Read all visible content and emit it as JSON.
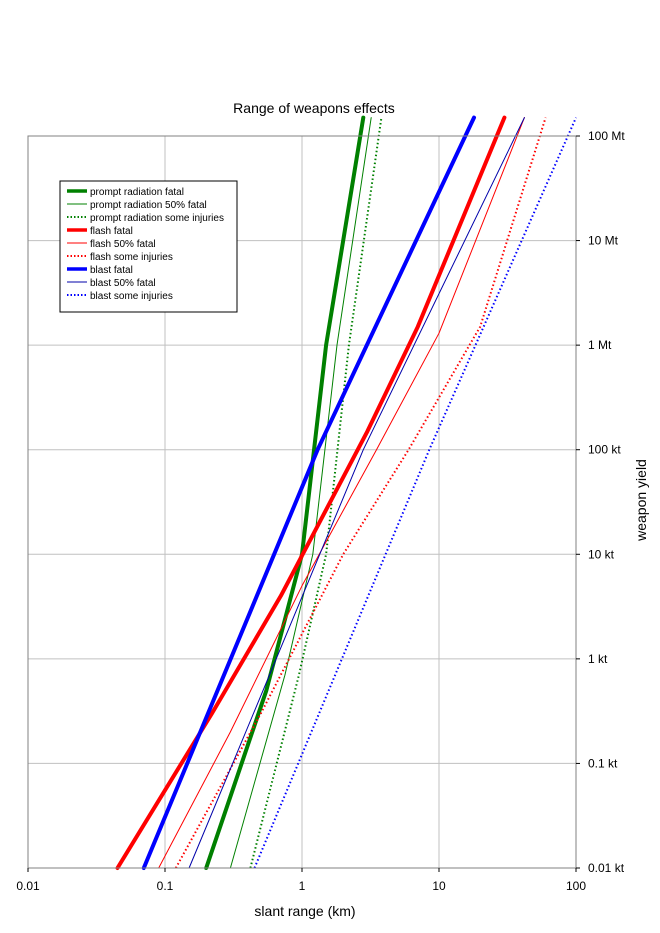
{
  "chart_data": {
    "type": "line",
    "title": "Range of weapons effects",
    "xlabel": "slant range (km)",
    "ylabel": "weapon yield",
    "xscale": "log",
    "yscale": "log",
    "xlim": [
      0.01,
      100
    ],
    "ylim_kt": [
      0.01,
      100000
    ],
    "grid": true,
    "legend_position": "top-left",
    "x_ticks": [
      {
        "value": 0.01,
        "label": "0.01"
      },
      {
        "value": 0.1,
        "label": "0.1"
      },
      {
        "value": 1,
        "label": "1"
      },
      {
        "value": 10,
        "label": "10"
      },
      {
        "value": 100,
        "label": "100"
      }
    ],
    "y_ticks": [
      {
        "value": 0.01,
        "label": "0.01  kt"
      },
      {
        "value": 0.1,
        "label": "0.1  kt"
      },
      {
        "value": 1,
        "label": "1  kt"
      },
      {
        "value": 10,
        "label": "10  kt"
      },
      {
        "value": 100,
        "label": "100  kt"
      },
      {
        "value": 1000,
        "label": "1  Mt"
      },
      {
        "value": 10000,
        "label": "10  Mt"
      },
      {
        "value": 100000,
        "label": "100  Mt"
      }
    ],
    "series": [
      {
        "name": "prompt radiation fatal",
        "color": "#008000",
        "width": 4,
        "dash": "solid",
        "points": [
          [
            0.2,
            0.01
          ],
          [
            0.55,
            0.5
          ],
          [
            1.0,
            10
          ],
          [
            1.5,
            1000
          ],
          [
            2.8,
            150000
          ]
        ]
      },
      {
        "name": "prompt radiation 50% fatal",
        "color": "#008000",
        "width": 1,
        "dash": "solid",
        "points": [
          [
            0.3,
            0.01
          ],
          [
            0.75,
            0.7
          ],
          [
            1.2,
            10
          ],
          [
            1.8,
            1000
          ],
          [
            3.2,
            150000
          ]
        ]
      },
      {
        "name": "prompt radiation some injuries",
        "color": "#008000",
        "width": 2,
        "dash": "dotted",
        "points": [
          [
            0.42,
            0.01
          ],
          [
            0.95,
            0.7
          ],
          [
            1.5,
            10
          ],
          [
            2.2,
            1000
          ],
          [
            3.8,
            150000
          ]
        ]
      },
      {
        "name": "flash fatal",
        "color": "#ff0000",
        "width": 4,
        "dash": "solid",
        "points": [
          [
            0.045,
            0.01
          ],
          [
            0.22,
            0.3
          ],
          [
            0.7,
            4
          ],
          [
            3.0,
            150
          ],
          [
            7.0,
            1500
          ],
          [
            30.0,
            150000
          ]
        ]
      },
      {
        "name": "flash 50% fatal",
        "color": "#ff0000",
        "width": 1,
        "dash": "solid",
        "points": [
          [
            0.09,
            0.01
          ],
          [
            0.3,
            0.2
          ],
          [
            1.0,
            5
          ],
          [
            3.5,
            100
          ],
          [
            10.0,
            1300
          ],
          [
            42.0,
            150000
          ]
        ]
      },
      {
        "name": "flash some injuries",
        "color": "#ff0000",
        "width": 2,
        "dash": "dotted",
        "points": [
          [
            0.12,
            0.01
          ],
          [
            0.5,
            0.3
          ],
          [
            2.0,
            10
          ],
          [
            6.0,
            100
          ],
          [
            20.0,
            1500
          ],
          [
            60.0,
            150000
          ]
        ]
      },
      {
        "name": "blast fatal",
        "color": "#0000ff",
        "width": 4,
        "dash": "solid",
        "points": [
          [
            0.07,
            0.01
          ],
          [
            1.3,
            100
          ],
          [
            18.0,
            150000
          ]
        ]
      },
      {
        "name": "blast 50% fatal",
        "color": "#0000aa",
        "width": 1,
        "dash": "solid",
        "points": [
          [
            0.15,
            0.01
          ],
          [
            2.8,
            100
          ],
          [
            42.0,
            150000
          ]
        ]
      },
      {
        "name": "blast some injuries",
        "color": "#0000ff",
        "width": 2,
        "dash": "dotted",
        "points": [
          [
            0.45,
            0.01
          ],
          [
            8.5,
            100
          ],
          [
            100.0,
            150000
          ]
        ]
      }
    ]
  }
}
